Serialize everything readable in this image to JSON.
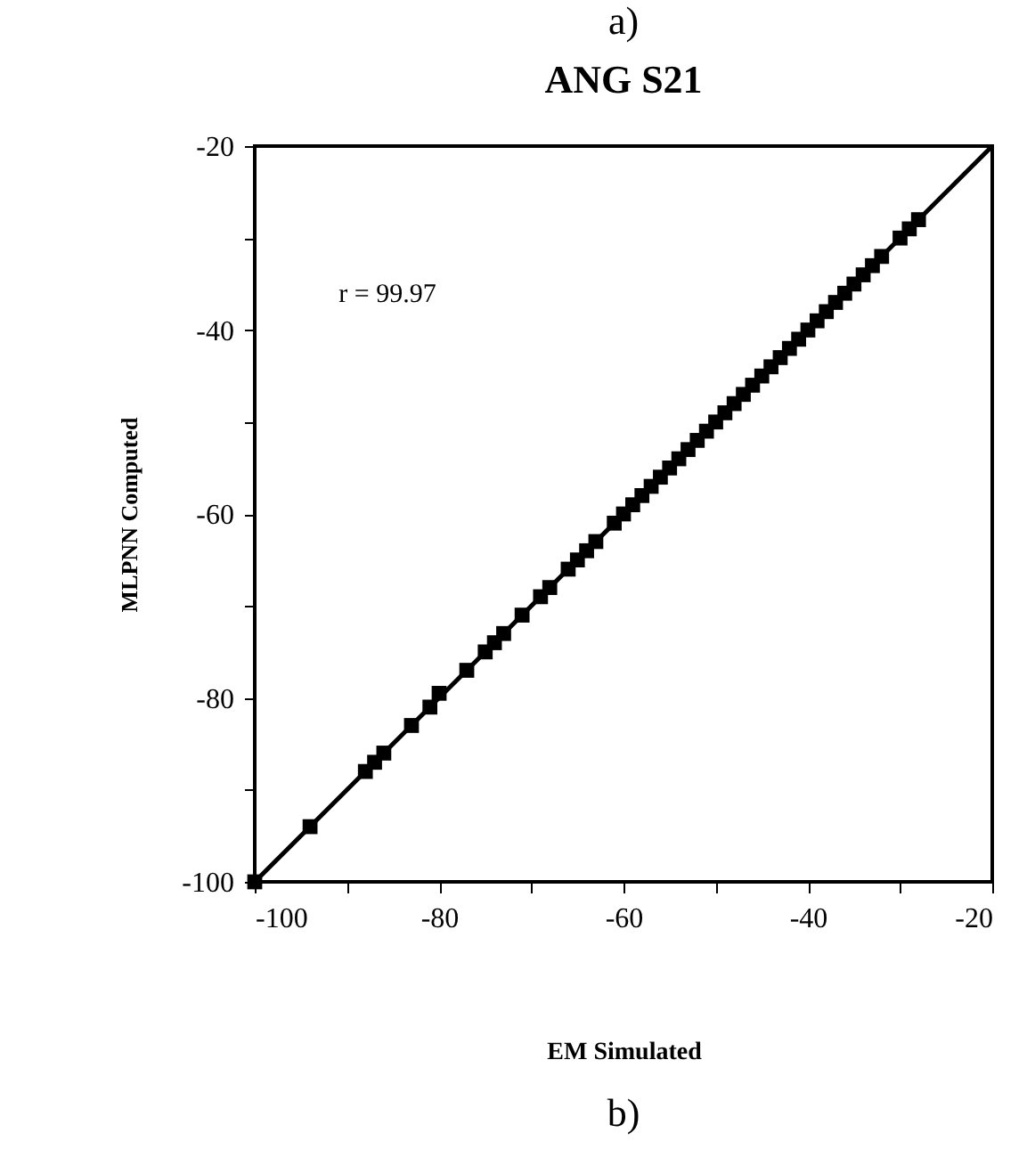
{
  "chart_data": {
    "type": "scatter",
    "title": "ANG S21",
    "xlabel": "EM Simulated",
    "ylabel": "MLPNN Computed",
    "annotations": [
      "a)",
      "b)",
      "r = 99.97"
    ],
    "xlim": [
      -100,
      -20
    ],
    "ylim": [
      -100,
      -20
    ],
    "xticks": [
      -100,
      {
        "value": -90,
        "label": null
      },
      -80,
      {
        "value": -70,
        "label": null
      },
      -60,
      {
        "value": -50,
        "label": null
      },
      -40,
      {
        "value": -30,
        "label": null
      },
      -20
    ],
    "yticks": [
      -100,
      {
        "value": -90,
        "label": null
      },
      -80,
      {
        "value": -70,
        "label": null
      },
      -60,
      {
        "value": -50,
        "label": null
      },
      -40,
      {
        "value": -30,
        "label": null
      },
      -20
    ],
    "grid": false,
    "series": [
      {
        "marker": "square",
        "color": "#000000",
        "x": [
          -100,
          -94,
          -88,
          -87,
          -86,
          -83,
          -81,
          -80,
          -77,
          -75,
          -74,
          -73,
          -71,
          -69,
          -68,
          -66,
          -65,
          -64,
          -63,
          -61,
          -60,
          -59,
          -58,
          -57,
          -56,
          -55,
          -54,
          -53,
          -52,
          -51,
          -50,
          -49,
          -48,
          -47,
          -46,
          -45,
          -44,
          -43,
          -42,
          -41,
          -40,
          -39,
          -38,
          -37,
          -36,
          -35,
          -34,
          -33,
          -32,
          -30,
          -29,
          -28
        ],
        "values": [
          -100,
          -94,
          -88,
          -87,
          -86,
          -83,
          -81,
          -79.5,
          -77,
          -75,
          -74,
          -73,
          -71,
          -69,
          -68,
          -66,
          -65,
          -64,
          -63,
          -61,
          -60,
          -59,
          -58,
          -57,
          -56,
          -55,
          -54,
          -53,
          -52,
          -51,
          -50,
          -49,
          -48,
          -47,
          -46,
          -45,
          -44,
          -43,
          -42,
          -41,
          -40,
          -39,
          -38,
          -37,
          -36,
          -35,
          -34,
          -33,
          -32,
          -30,
          -29,
          -28
        ]
      },
      {
        "type": "line",
        "marker": "none",
        "color": "#000000",
        "line_style": "solid",
        "x": [
          -100,
          -20
        ],
        "values": [
          -100,
          -20
        ]
      }
    ]
  }
}
